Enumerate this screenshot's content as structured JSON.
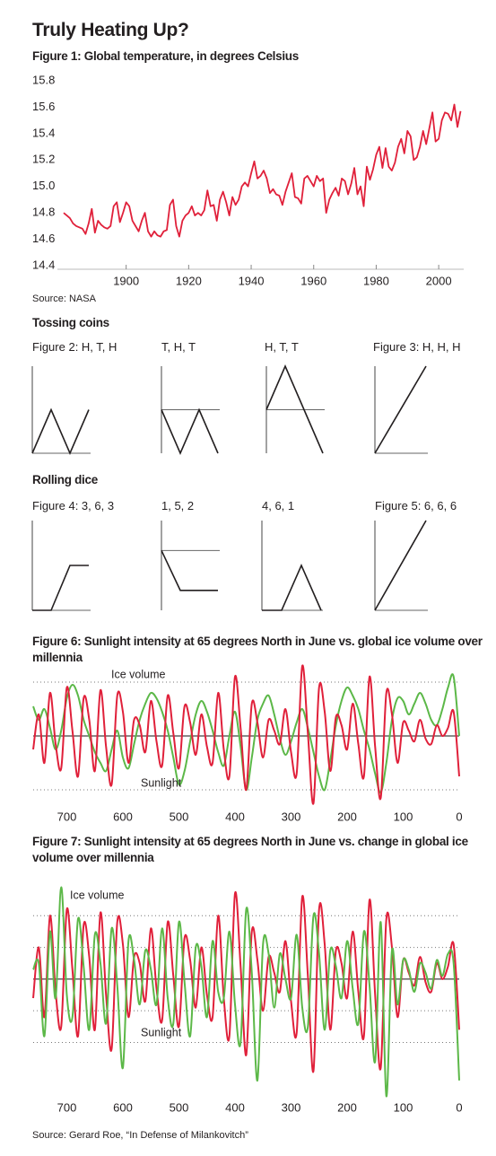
{
  "title": "Truly Heating Up?",
  "headings": [
    "Tossing coins",
    "Rolling dice"
  ],
  "source": "Source: Gerard Roe, “In Defense of Milankovitch”",
  "chart_data": [
    {
      "type": "line",
      "title": "Figure 1: Global temperature, in degrees Celsius",
      "source": "Source: NASA",
      "color": "#e0203a",
      "x": [
        1880,
        1881,
        1882,
        1883,
        1884,
        1885,
        1886,
        1887,
        1888,
        1889,
        1890,
        1891,
        1892,
        1893,
        1894,
        1895,
        1896,
        1897,
        1898,
        1899,
        1900,
        1901,
        1902,
        1903,
        1904,
        1905,
        1906,
        1907,
        1908,
        1909,
        1910,
        1911,
        1912,
        1913,
        1914,
        1915,
        1916,
        1917,
        1918,
        1919,
        1920,
        1921,
        1922,
        1923,
        1924,
        1925,
        1926,
        1927,
        1928,
        1929,
        1930,
        1931,
        1932,
        1933,
        1934,
        1935,
        1936,
        1937,
        1938,
        1939,
        1940,
        1941,
        1942,
        1943,
        1944,
        1945,
        1946,
        1947,
        1948,
        1949,
        1950,
        1951,
        1952,
        1953,
        1954,
        1955,
        1956,
        1957,
        1958,
        1959,
        1960,
        1961,
        1962,
        1963,
        1964,
        1965,
        1966,
        1967,
        1968,
        1969,
        1970,
        1971,
        1972,
        1973,
        1974,
        1975,
        1976,
        1977,
        1978,
        1979,
        1980,
        1981,
        1982,
        1983,
        1984,
        1985,
        1986,
        1987,
        1988,
        1989,
        1990,
        1991,
        1992,
        1993,
        1994,
        1995,
        1996,
        1997,
        1998,
        1999,
        2000,
        2001,
        2002,
        2003,
        2004,
        2005,
        2006,
        2007
      ],
      "values": [
        14.8,
        14.78,
        14.76,
        14.72,
        14.7,
        14.69,
        14.68,
        14.64,
        14.72,
        14.83,
        14.65,
        14.74,
        14.71,
        14.69,
        14.68,
        14.7,
        14.85,
        14.88,
        14.73,
        14.8,
        14.88,
        14.85,
        14.74,
        14.7,
        14.66,
        14.74,
        14.8,
        14.66,
        14.62,
        14.66,
        14.63,
        14.62,
        14.66,
        14.67,
        14.86,
        14.9,
        14.7,
        14.62,
        14.74,
        14.78,
        14.8,
        14.85,
        14.78,
        14.8,
        14.78,
        14.82,
        14.97,
        14.85,
        14.86,
        14.74,
        14.9,
        14.96,
        14.88,
        14.78,
        14.92,
        14.86,
        14.9,
        15.0,
        15.03,
        15.0,
        15.1,
        15.19,
        15.06,
        15.08,
        15.12,
        15.06,
        14.95,
        14.98,
        14.94,
        14.93,
        14.86,
        14.96,
        15.03,
        15.1,
        14.92,
        14.91,
        14.87,
        15.06,
        15.08,
        15.04,
        15.0,
        15.08,
        15.04,
        15.06,
        14.8,
        14.9,
        14.95,
        14.99,
        14.93,
        15.06,
        15.04,
        14.94,
        15.02,
        15.14,
        14.94,
        15.0,
        14.85,
        15.15,
        15.05,
        15.13,
        15.24,
        15.3,
        15.14,
        15.29,
        15.15,
        15.12,
        15.18,
        15.3,
        15.36,
        15.25,
        15.42,
        15.38,
        15.2,
        15.22,
        15.3,
        15.42,
        15.32,
        15.44,
        15.56,
        15.34,
        15.36,
        15.5,
        15.56,
        15.55,
        15.5,
        15.62,
        15.45,
        15.57
      ],
      "xlim": [
        1878,
        2008
      ],
      "xticks": [
        1900,
        1920,
        1940,
        1960,
        1980,
        2000
      ],
      "ylim": [
        14.4,
        15.8
      ],
      "yticks": [
        14.4,
        14.6,
        14.8,
        {
          "value": 15.0,
          "label": "15.0"
        },
        15.2,
        15.4,
        15.6,
        15.8
      ]
    },
    {
      "type": "line",
      "title": "Figure 2: H, T, H",
      "values": [
        0,
        1,
        0,
        1
      ],
      "ylim": [
        0,
        2
      ],
      "color": "#231f20"
    },
    {
      "type": "line",
      "title": "T, H, T",
      "values": [
        0,
        -1,
        0,
        -1
      ],
      "ylim": [
        -1,
        1
      ],
      "color": "#231f20"
    },
    {
      "type": "line",
      "title": "H, T, T",
      "values": [
        0,
        1,
        0,
        -1
      ],
      "ylim": [
        -1,
        1
      ],
      "color": "#231f20"
    },
    {
      "type": "line",
      "title": "Figure 3: H, H, H",
      "values": [
        0,
        1,
        2,
        3
      ],
      "ylim": [
        0,
        3
      ],
      "color": "#231f20"
    },
    {
      "type": "line",
      "title": "Figure 4: 3, 6, 3",
      "values": [
        0,
        0,
        1,
        1
      ],
      "ylim": [
        0,
        2
      ],
      "color": "#231f20"
    },
    {
      "type": "line",
      "title": "1, 5, 2",
      "values": [
        0,
        -1,
        -1,
        -1
      ],
      "ylim": [
        -1.5,
        0.75
      ],
      "color": "#231f20"
    },
    {
      "type": "line",
      "title": "4, 6, 1",
      "values": [
        0,
        0,
        1,
        0
      ],
      "ylim": [
        0,
        2
      ],
      "color": "#231f20"
    },
    {
      "type": "line",
      "title": "Figure 5: 6, 6, 6",
      "values": [
        0,
        1,
        2,
        3
      ],
      "ylim": [
        0,
        3
      ],
      "color": "#231f20"
    },
    {
      "type": "line",
      "title": "Figure 6: Sunlight intensity at 65 degrees North in June vs. global ice volume over millennia",
      "x": [
        760,
        750,
        740,
        730,
        720,
        710,
        700,
        690,
        680,
        670,
        660,
        650,
        640,
        630,
        620,
        610,
        600,
        590,
        580,
        570,
        560,
        550,
        540,
        530,
        520,
        510,
        500,
        490,
        480,
        470,
        460,
        450,
        440,
        430,
        420,
        410,
        400,
        390,
        380,
        370,
        360,
        350,
        340,
        330,
        320,
        310,
        300,
        290,
        280,
        270,
        260,
        250,
        240,
        230,
        220,
        210,
        200,
        190,
        180,
        170,
        160,
        150,
        140,
        130,
        120,
        110,
        100,
        90,
        80,
        70,
        60,
        50,
        40,
        30,
        20,
        10,
        0
      ],
      "xlim": [
        760,
        0
      ],
      "xticks": [
        700,
        600,
        500,
        400,
        300,
        200,
        100,
        0
      ],
      "ylim": [
        -2.7,
        2.7
      ],
      "yticks": [
        -2,
        0,
        2
      ],
      "show_ytick_labels": false,
      "series": [
        {
          "name": "Ice volume",
          "color": "#5cb848",
          "values": [
            1.1,
            0.6,
            1.0,
            0.3,
            -0.5,
            0.2,
            1.4,
            1.9,
            1.5,
            0.6,
            0.0,
            -0.6,
            -1.0,
            -1.3,
            -0.5,
            0.2,
            -0.8,
            -1.2,
            -0.3,
            0.6,
            1.2,
            1.6,
            1.4,
            0.9,
            0.2,
            -0.8,
            -1.8,
            -1.3,
            -0.2,
            0.8,
            1.3,
            0.9,
            0.2,
            -0.6,
            -1.1,
            0.0,
            0.9,
            -0.4,
            -2.0,
            -0.8,
            0.6,
            1.2,
            1.5,
            0.8,
            -0.1,
            -0.7,
            -0.2,
            0.5,
            1.0,
            0.3,
            -0.6,
            -1.5,
            -2.0,
            -0.9,
            0.4,
            1.3,
            1.8,
            1.5,
            1.0,
            0.2,
            -0.5,
            -1.4,
            -2.1,
            -1.0,
            0.6,
            1.4,
            1.3,
            0.8,
            1.2,
            1.6,
            1.2,
            0.6,
            0.4,
            1.0,
            1.8,
            2.2,
            0.0
          ]
        },
        {
          "name": "Sunlight",
          "color": "#e0203a",
          "values": [
            -0.5,
            0.8,
            -1.0,
            1.6,
            -0.3,
            -1.2,
            1.8,
            0.2,
            -1.5,
            1.4,
            0.6,
            -1.3,
            1.7,
            -0.4,
            -1.8,
            1.5,
            0.9,
            -1.0,
            0.6,
            0.4,
            -0.6,
            1.3,
            -0.2,
            -1.1,
            1.5,
            0.1,
            -1.2,
            1.1,
            0.5,
            -0.7,
            0.8,
            -0.4,
            -1.0,
            1.6,
            -0.5,
            -1.5,
            2.2,
            0.3,
            -2.0,
            1.2,
            0.5,
            -0.8,
            0.6,
            0.2,
            -0.3,
            1.0,
            -0.6,
            -1.4,
            2.6,
            0.1,
            -2.5,
            1.8,
            0.9,
            -1.3,
            0.7,
            0.4,
            -0.5,
            1.2,
            -0.3,
            -1.5,
            2.2,
            -0.4,
            -2.3,
            1.6,
            0.8,
            -1.0,
            0.5,
            0.2,
            -0.2,
            0.6,
            -0.1,
            -0.3,
            0.4,
            0.0,
            0.3,
            0.9,
            -1.5
          ]
        }
      ]
    },
    {
      "type": "line",
      "title": "Figure 7: Sunlight intensity at 65 degrees North in June vs. change in global ice volume over millennia",
      "x": [
        760,
        750,
        740,
        730,
        720,
        710,
        700,
        690,
        680,
        670,
        660,
        650,
        640,
        630,
        620,
        610,
        600,
        590,
        580,
        570,
        560,
        550,
        540,
        530,
        520,
        510,
        500,
        490,
        480,
        470,
        460,
        450,
        440,
        430,
        420,
        410,
        400,
        390,
        380,
        370,
        360,
        350,
        340,
        330,
        320,
        310,
        300,
        290,
        280,
        270,
        260,
        250,
        240,
        230,
        220,
        210,
        200,
        190,
        180,
        170,
        160,
        150,
        140,
        130,
        120,
        110,
        100,
        90,
        80,
        70,
        60,
        50,
        40,
        30,
        20,
        10,
        0
      ],
      "xlim": [
        760,
        0
      ],
      "xticks": [
        700,
        600,
        500,
        400,
        300,
        200,
        100,
        0
      ],
      "ylim": [
        -3.8,
        3.0
      ],
      "yticks": [
        -2,
        -1,
        0,
        1,
        2
      ],
      "show_ytick_labels": false,
      "series": [
        {
          "name": "Sunlight",
          "color": "#e0203a",
          "values": [
            -0.6,
            1.0,
            -1.2,
            2.0,
            -0.4,
            -1.5,
            2.2,
            0.3,
            -1.8,
            1.7,
            0.7,
            -1.6,
            2.1,
            -0.5,
            -2.2,
            1.8,
            1.1,
            -1.2,
            0.7,
            0.5,
            -0.7,
            1.6,
            -0.3,
            -1.3,
            1.8,
            0.1,
            -1.5,
            1.3,
            0.6,
            -0.9,
            1.0,
            -0.5,
            -1.2,
            2.0,
            -0.6,
            -1.8,
            2.7,
            0.4,
            -2.4,
            1.5,
            0.6,
            -1.0,
            0.7,
            0.2,
            -0.4,
            1.2,
            -0.7,
            -1.7,
            2.6,
            0.1,
            -2.9,
            2.2,
            1.1,
            -1.6,
            0.9,
            0.5,
            -0.6,
            1.5,
            -0.4,
            -1.8,
            2.5,
            -0.5,
            -2.8,
            1.9,
            1.0,
            -1.2,
            0.6,
            0.2,
            -0.2,
            0.7,
            -0.1,
            -0.4,
            0.5,
            0.0,
            0.4,
            1.1,
            -1.6
          ]
        },
        {
          "name": "Ice volume",
          "color": "#5cb848",
          "values": [
            0.3,
            0.5,
            -1.8,
            1.5,
            -0.6,
            2.9,
            -0.5,
            -1.2,
            1.9,
            0.4,
            -1.6,
            1.4,
            0.5,
            -1.4,
            1.6,
            -0.2,
            -2.8,
            1.2,
            0.6,
            -0.8,
            0.9,
            0.3,
            -0.8,
            1.6,
            -0.6,
            -1.4,
            1.8,
            -0.1,
            -1.8,
            1.0,
            0.4,
            -1.2,
            1.2,
            -0.4,
            -0.6,
            1.5,
            -0.8,
            -2.0,
            2.2,
            0.2,
            -3.2,
            1.1,
            0.8,
            -0.9,
            0.8,
            0.0,
            -0.6,
            1.4,
            -0.9,
            -1.5,
            2.0,
            0.8,
            -1.6,
            0.9,
            0.4,
            -0.6,
            1.2,
            -0.3,
            -1.4,
            1.5,
            -0.2,
            -2.6,
            1.8,
            -3.7,
            0.9,
            -0.8,
            0.6,
            0.3,
            -0.4,
            0.5,
            0.2,
            -0.3,
            0.6,
            0.1,
            0.8,
            0.5,
            -3.2
          ]
        }
      ]
    }
  ]
}
